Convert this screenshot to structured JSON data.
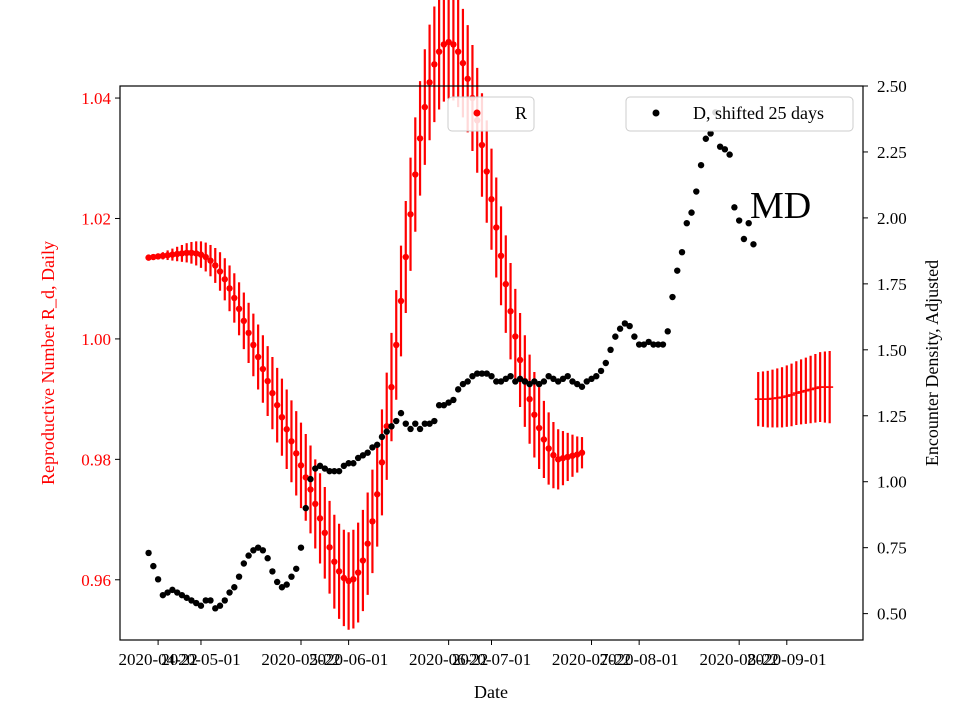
{
  "chart_data": {
    "type": "scatter",
    "panel_label": "MD",
    "xlabel": "Date",
    "ylabel_left": "Reproductive Number R_d, Daily",
    "ylabel_right": "Encounter Density, Adjusted",
    "x_range": [
      "2020-04-14",
      "2020-09-17"
    ],
    "ylim_left": [
      0.95,
      1.042
    ],
    "ylim_right": [
      0.4,
      2.5
    ],
    "x_ticks": [
      "2020-04-22",
      "2020-05-01",
      "2020-05-22",
      "2020-06-01",
      "2020-06-22",
      "2020-07-01",
      "2020-07-22",
      "2020-08-01",
      "2020-08-22",
      "2020-09-01"
    ],
    "y_ticks_left": [
      "0.96",
      "0.98",
      "1.00",
      "1.02",
      "1.04"
    ],
    "y_ticks_right": [
      "0.50",
      "0.75",
      "1.00",
      "1.25",
      "1.50",
      "1.75",
      "2.00",
      "2.25",
      "2.50"
    ],
    "grid": false,
    "legend": [
      {
        "label": "R",
        "placement": "top-center",
        "color": "#ff0000"
      },
      {
        "label": "D, shifted 25 days",
        "placement": "top-right",
        "color": "#000000"
      }
    ],
    "colors": {
      "R": "#ff0000",
      "D": "#000000",
      "left_axis": "#ff0000"
    },
    "series": [
      {
        "name": "R",
        "axis": "left",
        "marker": "dot",
        "start_date": "2020-04-20",
        "y": [
          1.0135,
          1.0136,
          1.0137,
          1.0138,
          1.0139,
          1.014,
          1.0141,
          1.0142,
          1.0143,
          1.0143,
          1.0142,
          1.014,
          1.0136,
          1.013,
          1.0122,
          1.0112,
          1.0099,
          1.0084,
          1.0068,
          1.005,
          1.003,
          1.001,
          0.999,
          0.997,
          0.995,
          0.993,
          0.991,
          0.989,
          0.987,
          0.985,
          0.983,
          0.981,
          0.979,
          0.977,
          0.975,
          0.9726,
          0.9702,
          0.9678,
          0.9654,
          0.963,
          0.9614,
          0.9603,
          0.9598,
          0.9601,
          0.9612,
          0.9632,
          0.966,
          0.9697,
          0.9742,
          0.9795,
          0.9855,
          0.992,
          0.999,
          1.0063,
          1.0136,
          1.0207,
          1.0273,
          1.0333,
          1.0385,
          1.0426,
          1.0456,
          1.0477,
          1.0489,
          1.0493,
          1.0489,
          1.0477,
          1.0458,
          1.0432,
          1.04,
          1.0363,
          1.0322,
          1.0278,
          1.0232,
          1.0185,
          1.0138,
          1.0091,
          1.0046,
          1.0004,
          0.9965,
          0.993,
          0.99,
          0.9874,
          0.9852,
          0.9833,
          0.9818,
          0.9807,
          0.98,
          0.9802,
          0.9804,
          0.9806,
          0.9808,
          0.9811
        ],
        "error": [
          0.0003,
          0.0004,
          0.0005,
          0.0006,
          0.0008,
          0.001,
          0.0012,
          0.0014,
          0.0016,
          0.0018,
          0.002,
          0.0022,
          0.0024,
          0.0026,
          0.0029,
          0.0032,
          0.0035,
          0.0038,
          0.0041,
          0.0044,
          0.0047,
          0.005,
          0.0052,
          0.0054,
          0.0056,
          0.0058,
          0.006,
          0.0062,
          0.0064,
          0.0066,
          0.0068,
          0.007,
          0.0071,
          0.0072,
          0.0073,
          0.0074,
          0.0075,
          0.0076,
          0.0077,
          0.0078,
          0.0079,
          0.008,
          0.0081,
          0.0082,
          0.0083,
          0.0084,
          0.0085,
          0.0086,
          0.0087,
          0.0088,
          0.0089,
          0.009,
          0.0091,
          0.0092,
          0.0093,
          0.0094,
          0.0095,
          0.0095,
          0.0096,
          0.0096,
          0.0096,
          0.0096,
          0.0095,
          0.0094,
          0.0093,
          0.0092,
          0.009,
          0.0089,
          0.0088,
          0.0087,
          0.0086,
          0.0085,
          0.0084,
          0.0083,
          0.0082,
          0.0081,
          0.008,
          0.0079,
          0.0078,
          0.0076,
          0.0074,
          0.0071,
          0.0068,
          0.0064,
          0.006,
          0.0055,
          0.005,
          0.0045,
          0.004,
          0.0035,
          0.003,
          0.0026
        ]
      },
      {
        "name": "R_proj",
        "axis": "left",
        "marker": "hline",
        "start_date": "2020-08-26",
        "y": [
          0.99,
          0.99,
          0.99,
          0.9901,
          0.9902,
          0.9903,
          0.9905,
          0.9907,
          0.991,
          0.9912,
          0.9914,
          0.9916,
          0.9918,
          0.992,
          0.992,
          0.992
        ],
        "error": [
          0.0045,
          0.0046,
          0.0047,
          0.0048,
          0.0049,
          0.005,
          0.0051,
          0.0052,
          0.0053,
          0.0054,
          0.0055,
          0.0056,
          0.0057,
          0.0058,
          0.0059,
          0.006
        ]
      },
      {
        "name": "D, shifted 25 days",
        "axis": "right",
        "marker": "dot",
        "start_date": "2020-04-20",
        "y": [
          0.73,
          0.68,
          0.63,
          0.57,
          0.58,
          0.59,
          0.58,
          0.57,
          0.56,
          0.55,
          0.54,
          0.53,
          0.55,
          0.55,
          0.52,
          0.53,
          0.55,
          0.58,
          0.6,
          0.64,
          0.69,
          0.72,
          0.74,
          0.75,
          0.74,
          0.71,
          0.66,
          0.62,
          0.6,
          0.61,
          0.64,
          0.67,
          0.75,
          0.9,
          1.01,
          1.05,
          1.06,
          1.05,
          1.04,
          1.04,
          1.04,
          1.06,
          1.07,
          1.07,
          1.09,
          1.1,
          1.11,
          1.13,
          1.14,
          1.17,
          1.19,
          1.21,
          1.23,
          1.26,
          1.22,
          1.2,
          1.22,
          1.2,
          1.22,
          1.22,
          1.23,
          1.29,
          1.29,
          1.3,
          1.31,
          1.35,
          1.37,
          1.38,
          1.4,
          1.41,
          1.41,
          1.41,
          1.4,
          1.38,
          1.38,
          1.39,
          1.4,
          1.38,
          1.39,
          1.38,
          1.37,
          1.38,
          1.37,
          1.38,
          1.4,
          1.39,
          1.38,
          1.39,
          1.4,
          1.38,
          1.37,
          1.36,
          1.38,
          1.39,
          1.4,
          1.42,
          1.45,
          1.5,
          1.55,
          1.58,
          1.6,
          1.59,
          1.55,
          1.52,
          1.52,
          1.53,
          1.52,
          1.52,
          1.52,
          1.57,
          1.7,
          1.8,
          1.87,
          1.98,
          2.02,
          2.1,
          2.2,
          2.3,
          2.32,
          2.4,
          2.27,
          2.26,
          2.24,
          2.04,
          1.99,
          1.92,
          1.98,
          1.9
        ]
      }
    ]
  }
}
